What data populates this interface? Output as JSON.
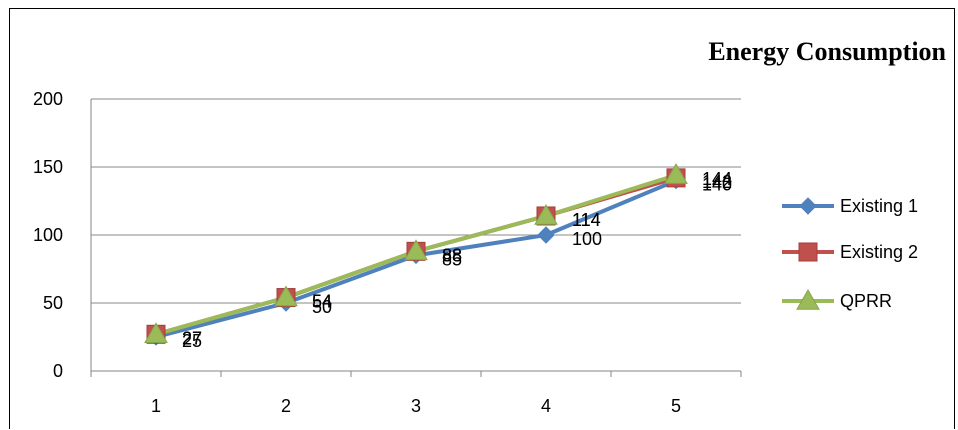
{
  "chart_data": {
    "type": "line",
    "title": "Energy Consumption",
    "x": [
      "1",
      "2",
      "3",
      "4",
      "5"
    ],
    "ylim": [
      0,
      200
    ],
    "yticks": [
      0,
      50,
      100,
      150,
      200
    ],
    "grid": true,
    "legend_position": "right",
    "series": [
      {
        "name": "Existing 1",
        "values": [
          25,
          50,
          85,
          100,
          140
        ],
        "color": "#4f81bd",
        "marker": "diamond"
      },
      {
        "name": "Existing 2",
        "values": [
          27,
          54,
          88,
          114,
          142
        ],
        "color": "#c0504d",
        "marker": "square"
      },
      {
        "name": "QPRR",
        "values": [
          27,
          54,
          88,
          114,
          144
        ],
        "color": "#9bbb59",
        "marker": "triangle"
      }
    ]
  }
}
